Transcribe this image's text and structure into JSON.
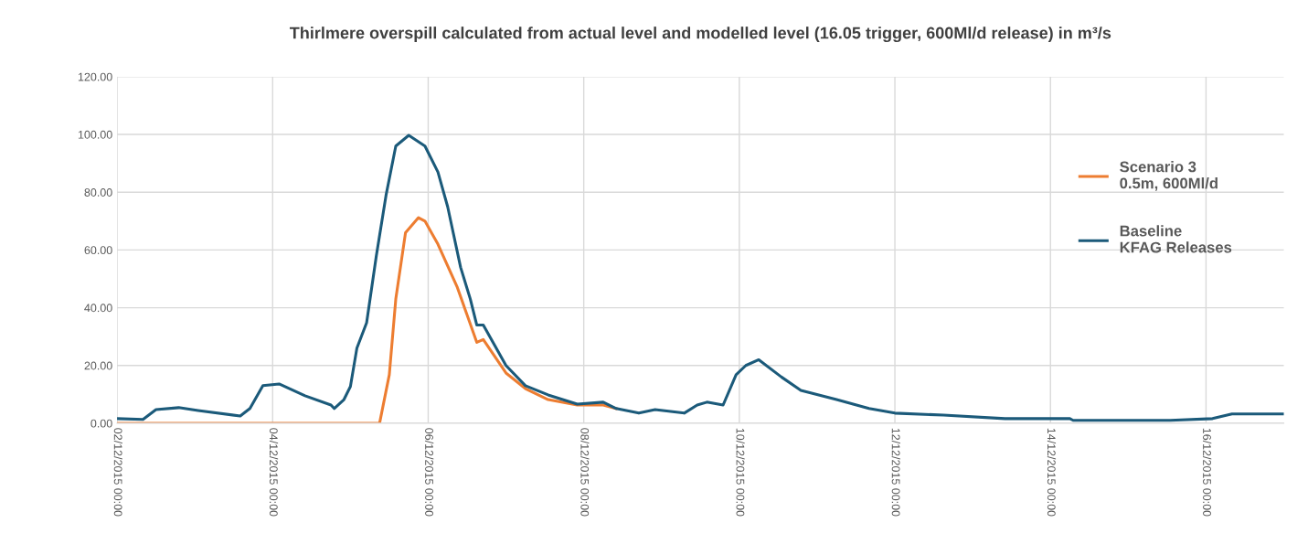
{
  "chart_data": {
    "type": "line",
    "title": "Thirlmere overspill calculated from actual level and modelled level (16.05 trigger, 600Ml/d release) in m³/s",
    "series": [
      {
        "name": "Scenario 3\n0.5m, 600Ml/d",
        "color": "#ed7d31",
        "x": [
          "2015-12-02T00:00",
          "2015-12-05T09:00",
          "2015-12-05T12:00",
          "2015-12-05T14:00",
          "2015-12-05T17:00",
          "2015-12-05T21:00",
          "2015-12-05T23:00",
          "2015-12-06T03:00",
          "2015-12-06T09:00",
          "2015-12-06T15:00",
          "2015-12-06T17:00",
          "2015-12-07T00:00",
          "2015-12-07T06:00",
          "2015-12-07T13:00",
          "2015-12-07T22:00",
          "2015-12-08T06:00",
          "2015-12-08T10:00"
        ],
        "values": [
          0,
          0,
          16.8,
          43,
          66,
          71.2,
          70,
          62,
          47,
          28,
          29,
          17.4,
          12,
          8.2,
          6.3,
          6.3,
          5.1
        ]
      },
      {
        "name": "Baseline\nKFAG Releases",
        "color": "#1b5a7a",
        "x": [
          "2015-12-02T00:00",
          "2015-12-02T08:00",
          "2015-12-02T12:00",
          "2015-12-02T19:00",
          "2015-12-03T01:00",
          "2015-12-03T14:00",
          "2015-12-03T17:00",
          "2015-12-03T21:00",
          "2015-12-04T02:00",
          "2015-12-04T10:00",
          "2015-12-04T18:00",
          "2015-12-04T19:00",
          "2015-12-04T22:00",
          "2015-12-05T00:00",
          "2015-12-05T02:00",
          "2015-12-05T05:00",
          "2015-12-05T08:00",
          "2015-12-05T11:00",
          "2015-12-05T14:00",
          "2015-12-05T18:00",
          "2015-12-05T23:00",
          "2015-12-06T03:00",
          "2015-12-06T06:00",
          "2015-12-06T10:00",
          "2015-12-06T13:00",
          "2015-12-06T15:00",
          "2015-12-06T17:00",
          "2015-12-07T00:00",
          "2015-12-07T06:00",
          "2015-12-07T13:00",
          "2015-12-07T22:00",
          "2015-12-08T06:00",
          "2015-12-08T10:00",
          "2015-12-08T17:00",
          "2015-12-08T22:00",
          "2015-12-09T07:00",
          "2015-12-09T11:00",
          "2015-12-09T14:00",
          "2015-12-09T19:00",
          "2015-12-09T23:00",
          "2015-12-10T02:00",
          "2015-12-10T06:00",
          "2015-12-10T13:00",
          "2015-12-10T19:00",
          "2015-12-11T06:00",
          "2015-12-11T16:00",
          "2015-12-12T00:00",
          "2015-12-12T15:00",
          "2015-12-13T10:00",
          "2015-12-14T06:00",
          "2015-12-14T07:00",
          "2015-12-15T13:00",
          "2015-12-16T02:00",
          "2015-12-16T08:00",
          "2015-12-17T00:00"
        ],
        "values": [
          1.6,
          1.3,
          4.7,
          5.4,
          4.4,
          2.5,
          5.1,
          13,
          13.6,
          9.5,
          6.3,
          5.1,
          8.2,
          12.7,
          26,
          34.8,
          58,
          79,
          96,
          99.7,
          96,
          87,
          75,
          54,
          43,
          34,
          34,
          20,
          13,
          9.8,
          6.6,
          7.3,
          5.1,
          3.5,
          4.7,
          3.5,
          6.3,
          7.3,
          6.3,
          16.8,
          20,
          22,
          16,
          11.4,
          8.2,
          5.1,
          3.5,
          2.8,
          1.6,
          1.6,
          1.0,
          1.0,
          1.6,
          3.2,
          3.2
        ]
      }
    ],
    "xlim": [
      "2015-12-02T00:00",
      "2015-12-17T00:00"
    ],
    "xticks": [
      {
        "value": "2015-12-02T00:00",
        "label": "02/12/2015 00:00"
      },
      {
        "value": "2015-12-04T00:00",
        "label": "04/12/2015 00:00"
      },
      {
        "value": "2015-12-06T00:00",
        "label": "06/12/2015 00:00"
      },
      {
        "value": "2015-12-08T00:00",
        "label": "08/12/2015 00:00"
      },
      {
        "value": "2015-12-10T00:00",
        "label": "10/12/2015 00:00"
      },
      {
        "value": "2015-12-12T00:00",
        "label": "12/12/2015 00:00"
      },
      {
        "value": "2015-12-14T00:00",
        "label": "14/12/2015 00:00"
      },
      {
        "value": "2015-12-16T00:00",
        "label": "16/12/2015 00:00"
      }
    ],
    "ylim": [
      0,
      120
    ],
    "yticks": [
      {
        "value": 0,
        "label": "0.00"
      },
      {
        "value": 20,
        "label": "20.00"
      },
      {
        "value": 40,
        "label": "40.00"
      },
      {
        "value": 60,
        "label": "60.00"
      },
      {
        "value": 80,
        "label": "80.00"
      },
      {
        "value": 100,
        "label": "100.00"
      },
      {
        "value": 120,
        "label": "120.00"
      }
    ],
    "grid": true,
    "legend": "right",
    "marker": "none",
    "line_style": "solid"
  }
}
